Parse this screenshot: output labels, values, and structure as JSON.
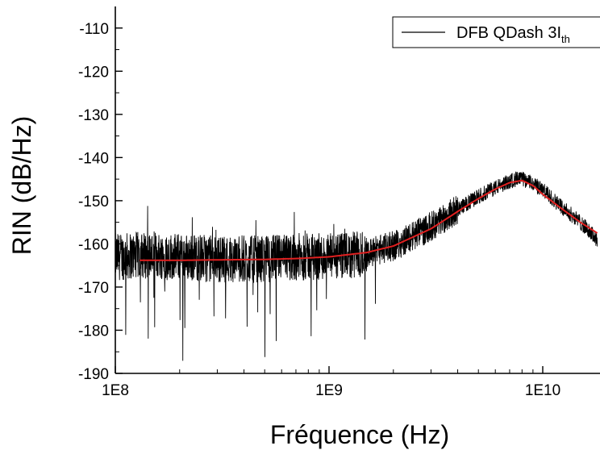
{
  "chart_data": {
    "type": "line",
    "xlabel": "Fréquence (Hz)",
    "ylabel": "RIN (dB/Hz)",
    "x_scale": "log",
    "xlim": [
      100000000.0,
      18000000000.0
    ],
    "ylim": [
      -190,
      -105
    ],
    "x_ticks": [
      {
        "value": 100000000.0,
        "label": "1E8"
      },
      {
        "value": 1000000000.0,
        "label": "1E9"
      },
      {
        "value": 10000000000.0,
        "label": "1E10"
      }
    ],
    "y_ticks": [
      {
        "value": -110,
        "label": "-110"
      },
      {
        "value": -120,
        "label": "-120"
      },
      {
        "value": -130,
        "label": "-130"
      },
      {
        "value": -140,
        "label": "-140"
      },
      {
        "value": -150,
        "label": "-150"
      },
      {
        "value": -160,
        "label": "-160"
      },
      {
        "value": -170,
        "label": "-170"
      },
      {
        "value": -180,
        "label": "-180"
      },
      {
        "value": -190,
        "label": "-190"
      }
    ],
    "grid": false,
    "legend_position": "top-right",
    "series": [
      {
        "name": "DFB QDash 3I",
        "name_subscript": "th",
        "color": "#000000",
        "style": "noisy measurement",
        "x": [
          100000000.0,
          150000000.0,
          200000000.0,
          300000000.0,
          500000000.0,
          700000000.0,
          900000000.0,
          1200000000.0,
          1500000000.0,
          2000000000.0,
          3000000000.0,
          4000000000.0,
          5000000000.0,
          6000000000.0,
          7000000000.0,
          7500000000.0,
          8000000000.0,
          9000000000.0,
          10000000000.0,
          12000000000.0,
          15000000000.0,
          18000000000.0
        ],
        "values": [
          -163,
          -162.5,
          -163,
          -163.5,
          -163.5,
          -163,
          -163,
          -163,
          -162,
          -160.5,
          -156,
          -152,
          -149,
          -147,
          -145.5,
          -145,
          -145,
          -146,
          -147.5,
          -151,
          -155,
          -159
        ]
      },
      {
        "name": "",
        "color": "#e02020",
        "style": "smooth fit",
        "x": [
          130000000.0,
          200000000.0,
          300000000.0,
          500000000.0,
          700000000.0,
          1000000000.0,
          1500000000.0,
          2000000000.0,
          3000000000.0,
          4000000000.0,
          5000000000.0,
          6000000000.0,
          7000000000.0,
          8000000000.0,
          9000000000.0,
          10000000000.0,
          12000000000.0,
          15000000000.0,
          18000000000.0
        ],
        "values": [
          -163.8,
          -163.8,
          -163.7,
          -163.6,
          -163.4,
          -163,
          -162,
          -160.5,
          -156.5,
          -152.5,
          -149.5,
          -147.3,
          -145.8,
          -145.3,
          -146.5,
          -148.5,
          -151.5,
          -155,
          -157.5
        ]
      }
    ]
  }
}
